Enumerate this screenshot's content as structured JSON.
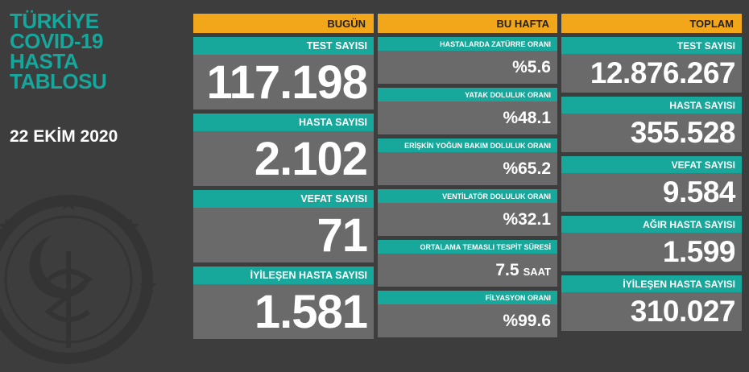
{
  "title": {
    "lines": [
      "TÜRKİYE",
      "COVID-19",
      "HASTA",
      "TABLOSU"
    ],
    "date": "22 EKİM 2020"
  },
  "columns": {
    "today": {
      "header": "BUGÜN",
      "items": [
        {
          "label": "TEST SAYISI",
          "value": "117.198"
        },
        {
          "label": "HASTA SAYISI",
          "value": "2.102"
        },
        {
          "label": "VEFAT SAYISI",
          "value": "71"
        },
        {
          "label": "İYİLEŞEN HASTA SAYISI",
          "value": "1.581"
        }
      ]
    },
    "week": {
      "header": "BU HAFTA",
      "items": [
        {
          "label": "HASTALARDA ZATÜRRE ORANI",
          "value": "%5.6",
          "unit": ""
        },
        {
          "label": "YATAK DOLULUK ORANI",
          "value": "%48.1",
          "unit": ""
        },
        {
          "label": "ERİŞKİN YOĞUN BAKIM DOLULUK ORANI",
          "value": "%65.2",
          "unit": ""
        },
        {
          "label": "VENTİLATÖR DOLULUK ORANI",
          "value": "%32.1",
          "unit": ""
        },
        {
          "label": "ORTALAMA TEMASLI TESPİT SÜRESİ",
          "value": "7.5",
          "unit": "SAAT"
        },
        {
          "label": "FİLYASYON ORANI",
          "value": "%99.6",
          "unit": ""
        }
      ]
    },
    "total": {
      "header": "TOPLAM",
      "items": [
        {
          "label": "TEST SAYISI",
          "value": "12.876.267"
        },
        {
          "label": "HASTA SAYISI",
          "value": "355.528"
        },
        {
          "label": "VEFAT SAYISI",
          "value": "9.584"
        },
        {
          "label": "AĞIR HASTA SAYISI",
          "value": "1.599"
        },
        {
          "label": "İYİLEŞEN HASTA SAYISI",
          "value": "310.027"
        }
      ]
    }
  },
  "colors": {
    "background": "#3d3d3d",
    "header": "#f2a71b",
    "label": "#17a89b",
    "card": "#6a6a6a",
    "title": "#16a79c"
  },
  "icons": {
    "emblem": "ministry-emblem-icon"
  }
}
